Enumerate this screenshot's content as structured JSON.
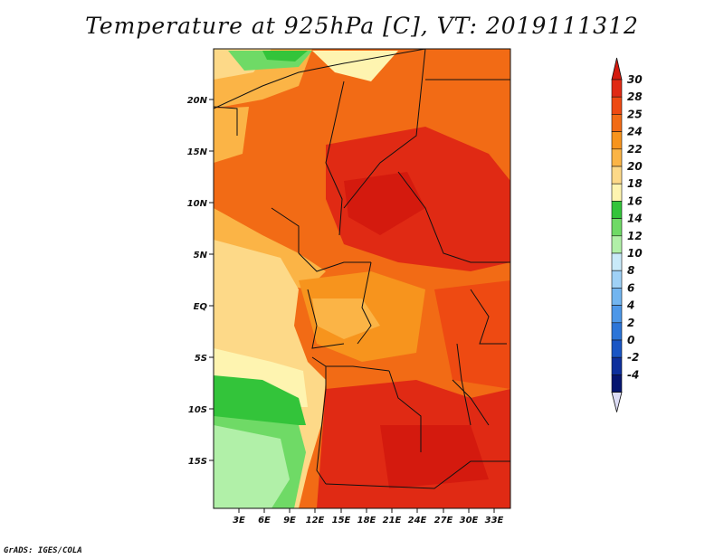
{
  "title": "Temperature at 925hPa [C], VT: 2019111312",
  "credit": "GrADS: IGES/COLA",
  "map": {
    "lat_labels": [
      "20N",
      "15N",
      "10N",
      "5N",
      "EQ",
      "5S",
      "10S",
      "15S"
    ],
    "lon_labels": [
      "3E",
      "6E",
      "9E",
      "12E",
      "15E",
      "18E",
      "21E",
      "24E",
      "27E",
      "30E",
      "33E"
    ]
  },
  "colorbar": {
    "labels": [
      "30",
      "28",
      "25",
      "24",
      "22",
      "20",
      "18",
      "16",
      "14",
      "12",
      "10",
      "8",
      "6",
      "4",
      "2",
      "0",
      "-2",
      "-4"
    ],
    "colors": [
      "#e02a14",
      "#ee4a12",
      "#f26b15",
      "#f7941d",
      "#fbb446",
      "#fdd988",
      "#fef4b0",
      "#33c43a",
      "#6fda66",
      "#b1f0a8",
      "#c9eaf9",
      "#9fd1f6",
      "#72b5f0",
      "#4d97e8",
      "#2c75d8",
      "#1955c4",
      "#0d2f9c",
      "#061570"
    ],
    "top_cap": "#d41a0e",
    "bottom_cap": "#dcdcf5"
  }
}
